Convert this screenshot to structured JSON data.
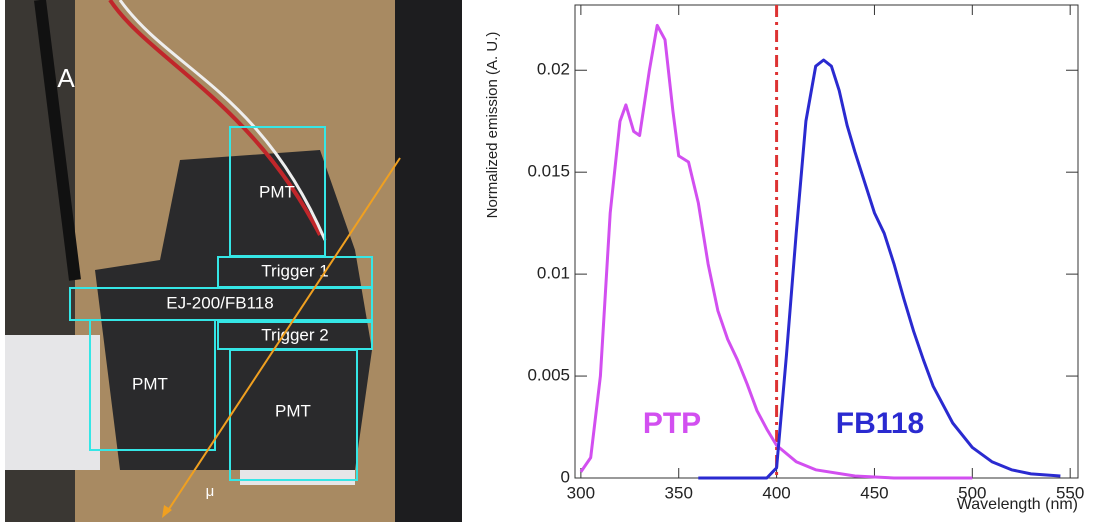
{
  "photo": {
    "panel_label": "A",
    "boxes": [
      {
        "label": "PMT"
      },
      {
        "label": "Trigger 1"
      },
      {
        "label": "EJ-200/FB118"
      },
      {
        "label": "Trigger 2"
      },
      {
        "label": "PMT"
      },
      {
        "label": "PMT"
      }
    ],
    "track_label": "μ"
  },
  "chart_data": {
    "type": "line",
    "x_label": "Wavelength (nm)",
    "y_label": "Normalized emission (A. U.)",
    "xlim": [
      297,
      554
    ],
    "ylim": [
      0,
      0.0232
    ],
    "xticks": [
      300,
      350,
      400,
      450,
      500,
      550
    ],
    "yticks": [
      0,
      0.005,
      0.01,
      0.015,
      0.02
    ],
    "reference_line_x": 400,
    "reference_line_color": "#dd3333",
    "series": [
      {
        "name": "PTP",
        "color": "#d24ff0",
        "x": [
          300,
          305,
          310,
          315,
          320,
          323,
          327,
          330,
          335,
          339,
          343,
          347,
          350,
          355,
          360,
          365,
          370,
          375,
          380,
          385,
          390,
          395,
          400,
          410,
          420,
          440,
          460,
          500
        ],
        "values": [
          0.0003,
          0.001,
          0.005,
          0.013,
          0.0175,
          0.0183,
          0.017,
          0.0168,
          0.02,
          0.0222,
          0.0215,
          0.018,
          0.0158,
          0.0155,
          0.0135,
          0.0105,
          0.0082,
          0.0068,
          0.0058,
          0.0046,
          0.0033,
          0.0024,
          0.0016,
          0.0008,
          0.0004,
          0.0001,
          0,
          0
        ]
      },
      {
        "name": "FB118",
        "color": "#2a2ad0",
        "x": [
          360,
          395,
          400,
          405,
          410,
          415,
          420,
          424,
          428,
          432,
          436,
          440,
          445,
          450,
          455,
          460,
          465,
          470,
          475,
          480,
          490,
          500,
          510,
          520,
          530,
          545
        ],
        "values": [
          0,
          0,
          0.0005,
          0.006,
          0.012,
          0.0175,
          0.0202,
          0.0205,
          0.0202,
          0.019,
          0.0173,
          0.016,
          0.0145,
          0.013,
          0.012,
          0.0105,
          0.0088,
          0.0072,
          0.0058,
          0.0045,
          0.0027,
          0.0015,
          0.0008,
          0.0004,
          0.0002,
          0.0001
        ]
      }
    ]
  }
}
